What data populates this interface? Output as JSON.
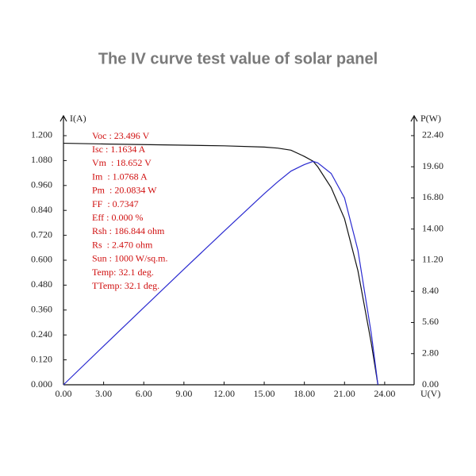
{
  "chart_data": {
    "type": "line",
    "title": "The IV curve test value of solar panel",
    "y_label": "I(A)",
    "y2_label": "P(W)",
    "x_label": "U(V)",
    "x": [
      0,
      3,
      6,
      9,
      12,
      15,
      16,
      17,
      18,
      18.652,
      19,
      20,
      21,
      22,
      23,
      23.496
    ],
    "series": [
      {
        "name": "I",
        "color": "#111111",
        "values": [
          1.1634,
          1.16,
          1.157,
          1.154,
          1.151,
          1.145,
          1.14,
          1.13,
          1.1,
          1.0768,
          1.05,
          0.95,
          0.8,
          0.55,
          0.2,
          0
        ]
      },
      {
        "name": "P",
        "color": "#2a2ad0",
        "axis": "y2",
        "values": [
          0,
          3.48,
          6.94,
          10.39,
          13.81,
          17.18,
          18.24,
          19.21,
          19.8,
          20.0834,
          19.95,
          19.0,
          16.8,
          12.1,
          4.6,
          0
        ]
      }
    ],
    "xlim": [
      0,
      26.2
    ],
    "ylim": [
      0,
      1.28
    ],
    "y2lim": [
      0,
      23.89
    ],
    "xticks": [
      {
        "value": 0,
        "label": "0.00"
      },
      {
        "value": 3,
        "label": "3.00"
      },
      {
        "value": 6,
        "label": "6.00"
      },
      {
        "value": 9,
        "label": "9.00"
      },
      {
        "value": 12,
        "label": "12.00"
      },
      {
        "value": 15,
        "label": "15.00"
      },
      {
        "value": 18,
        "label": "18.00"
      },
      {
        "value": 21,
        "label": "21.00"
      },
      {
        "value": 24,
        "label": "24.00"
      }
    ],
    "yticks": [
      {
        "value": 0,
        "label": "0.000"
      },
      {
        "value": 0.12,
        "label": "0.120"
      },
      {
        "value": 0.24,
        "label": "0.240"
      },
      {
        "value": 0.36,
        "label": "0.360"
      },
      {
        "value": 0.48,
        "label": "0.480"
      },
      {
        "value": 0.6,
        "label": "0.600"
      },
      {
        "value": 0.72,
        "label": "0.720"
      },
      {
        "value": 0.84,
        "label": "0.840"
      },
      {
        "value": 0.96,
        "label": "0.960"
      },
      {
        "value": 1.08,
        "label": "1.080"
      },
      {
        "value": 1.2,
        "label": "1.200"
      }
    ],
    "y2ticks": [
      {
        "value": 0,
        "label": "0.00"
      },
      {
        "value": 2.8,
        "label": "2.80"
      },
      {
        "value": 5.6,
        "label": "5.60"
      },
      {
        "value": 8.4,
        "label": "8.40"
      },
      {
        "value": 11.2,
        "label": "11.20"
      },
      {
        "value": 14,
        "label": "14.00"
      },
      {
        "value": 16.8,
        "label": "16.80"
      },
      {
        "value": 19.6,
        "label": "19.60"
      },
      {
        "value": 22.4,
        "label": "22.40"
      }
    ],
    "annotations": [
      "Voc : 23.496 V",
      "Isc : 1.1634 A",
      "Vm  : 18.652 V",
      "Im  : 1.0768 A",
      "Pm  : 20.0834 W",
      "FF  : 0.7347",
      "Eff : 0.000 %",
      "Rsh : 186.844 ohm",
      "Rs  : 2.470 ohm",
      "Sun : 1000 W/sq.m.",
      "Temp: 32.1 deg.",
      "TTemp: 32.1 deg."
    ]
  }
}
